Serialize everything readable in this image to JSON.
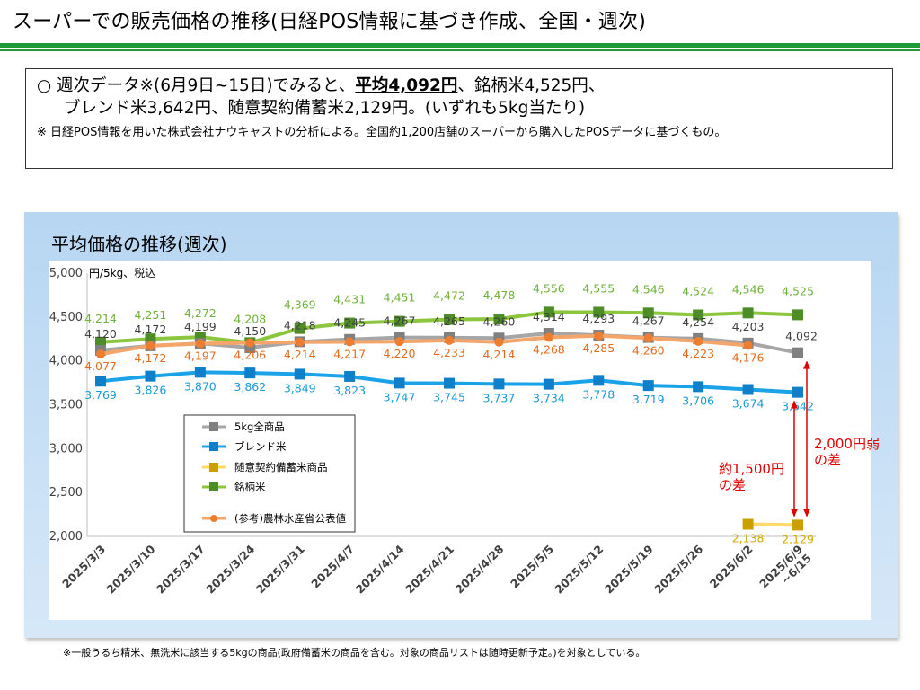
{
  "page": {
    "title": "スーパーでの販売価格の推移(日経POS情報に基づき作成、全国・週次)"
  },
  "summary": {
    "line1_pre": "○ 週次データ※(6月9日~15日)でみると、",
    "line1_bold": "平均4,092円",
    "line1_post": "、銘柄米4,525円、",
    "line2": "ブレンド米3,642円、随意契約備蓄米2,129円。(いずれも5kg当たり)",
    "note": "※ 日経POS情報を用いた株式会社ナウキャストの分析による。全国約1,200店舗のスーパーから購入したPOSデータに基づくもの。"
  },
  "chart_title": "平均価格の推移(週次)",
  "footnote": "※一般うるち精米、無洗米に該当する5kgの商品(政府備蓄米の商品を含む。対象の商品リストは随時更新予定。)を対象としている。",
  "annotations": {
    "diff_1500": [
      "約1,500円",
      "の差"
    ],
    "diff_2000": [
      "2,000円弱",
      "の差"
    ]
  },
  "chart_data": {
    "type": "line",
    "ylabel": "円/5kg、税込",
    "ylim": [
      2000,
      5000
    ],
    "yticks": [
      "2,000",
      "2,500",
      "3,000",
      "3,500",
      "4,000",
      "4,500",
      "5,000"
    ],
    "categories": [
      "2025/3/3",
      "2025/3/10",
      "2025/3/17",
      "2025/3/24",
      "2025/3/31",
      "2025/4/7",
      "2025/4/14",
      "2025/4/21",
      "2025/4/28",
      "2025/5/5",
      "2025/5/12",
      "2025/5/19",
      "2025/5/26",
      "2025/6/2",
      "2025/6/9~6/15"
    ],
    "series": [
      {
        "name": "銘柄米",
        "color": "#4e8c28",
        "line": "#8cc63f",
        "marker": "square",
        "values": [
          4214,
          4251,
          4272,
          4208,
          4369,
          4431,
          4451,
          4472,
          4478,
          4556,
          4555,
          4546,
          4524,
          4546,
          4525
        ],
        "labels": [
          "4,214",
          "4,251",
          "4,272",
          "4,208",
          "4,369",
          "4,431",
          "4,451",
          "4,472",
          "4,478",
          "4,556",
          "4,555",
          "4,546",
          "4,524",
          "4,546",
          "4,525"
        ],
        "label_color": "#6fb33a"
      },
      {
        "name": "5kg全商品",
        "color": "#808080",
        "line": "#a6a6a6",
        "marker": "square",
        "values": [
          4120,
          4172,
          4199,
          4150,
          4218,
          4245,
          4267,
          4265,
          4260,
          4314,
          4293,
          4267,
          4254,
          4203,
          4092
        ],
        "labels": [
          "4,120",
          "4,172",
          "4,199",
          "4,150",
          "4,218",
          "4,245",
          "4,267",
          "4,265",
          "4,260",
          "4,314",
          "4,293",
          "4,267",
          "4,254",
          "4,203",
          "4,092"
        ],
        "label_color": "#404040"
      },
      {
        "name": "(参考)農林水産省公表値",
        "color": "#ed7d31",
        "line": "#f4a56a",
        "marker": "circle",
        "values": [
          4077,
          4172,
          4197,
          4206,
          4214,
          4217,
          4220,
          4233,
          4214,
          4268,
          4285,
          4260,
          4223,
          4176,
          null
        ],
        "labels": [
          "4,077",
          "4,172",
          "4,197",
          "4,206",
          "4,214",
          "4,217",
          "4,220",
          "4,233",
          "4,214",
          "4,268",
          "4,285",
          "4,260",
          "4,223",
          "4,176",
          ""
        ],
        "label_color": "#e46c1e"
      },
      {
        "name": "ブレンド米",
        "color": "#0f7fc9",
        "line": "#1aa3e8",
        "marker": "square",
        "values": [
          3769,
          3826,
          3870,
          3862,
          3849,
          3823,
          3747,
          3745,
          3737,
          3734,
          3778,
          3719,
          3706,
          3674,
          3642
        ],
        "labels": [
          "3,769",
          "3,826",
          "3,870",
          "3,862",
          "3,849",
          "3,823",
          "3,747",
          "3,745",
          "3,737",
          "3,734",
          "3,778",
          "3,719",
          "3,706",
          "3,674",
          "3,642"
        ],
        "label_color": "#1a9bd7"
      },
      {
        "name": "随意契約備蓄米商品",
        "color": "#c9a000",
        "line": "#ffd966",
        "marker": "square",
        "values": [
          null,
          null,
          null,
          null,
          null,
          null,
          null,
          null,
          null,
          null,
          null,
          null,
          null,
          2138,
          2129
        ],
        "labels": [
          "",
          "",
          "",
          "",
          "",
          "",
          "",
          "",
          "",
          "",
          "",
          "",
          "",
          "2,138",
          "2,129"
        ],
        "label_color": "#d4a800"
      }
    ],
    "legend": {
      "placement": "lower-left",
      "entries": [
        "5kg全商品",
        "ブレンド米",
        "随意契約備蓄米商品",
        "銘柄米",
        "(参考)農林水産省公表値"
      ]
    },
    "grid": false
  }
}
